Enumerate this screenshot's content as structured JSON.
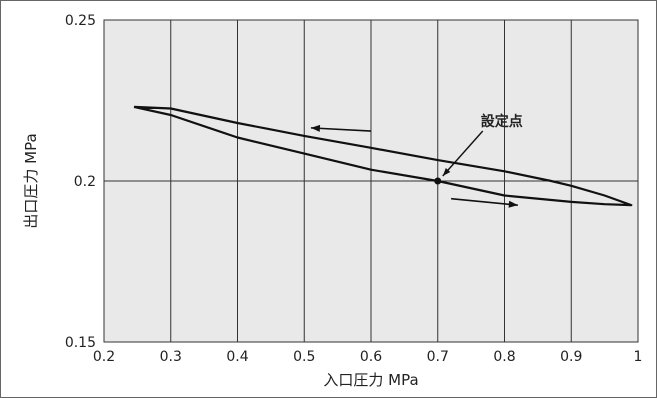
{
  "chart_data": {
    "type": "line",
    "xlabel": "入口圧力 MPa",
    "ylabel": "出口圧力 MPa",
    "xlim": [
      0.2,
      1.0
    ],
    "ylim": [
      0.15,
      0.25
    ],
    "x_ticks": [
      "0.2",
      "0.3",
      "0.4",
      "0.5",
      "0.6",
      "0.7",
      "0.8",
      "0.9",
      "1"
    ],
    "y_ticks": [
      "0.15",
      "0.2",
      "0.25"
    ],
    "grid": true,
    "background_color": "#e9e9e9",
    "series": [
      {
        "name": "",
        "points": [
          [
            0.245,
            0.223
          ],
          [
            0.3,
            0.2225
          ],
          [
            0.4,
            0.218
          ],
          [
            0.5,
            0.214
          ],
          [
            0.6,
            0.2103
          ],
          [
            0.7,
            0.2065
          ],
          [
            0.8,
            0.203
          ],
          [
            0.87,
            0.2
          ],
          [
            0.9,
            0.1985
          ],
          [
            0.95,
            0.1955
          ],
          [
            0.99,
            0.1925
          ],
          [
            0.95,
            0.1928
          ],
          [
            0.9,
            0.1935
          ],
          [
            0.8,
            0.1955
          ],
          [
            0.7,
            0.2
          ],
          [
            0.6,
            0.2035
          ],
          [
            0.5,
            0.2085
          ],
          [
            0.4,
            0.2135
          ],
          [
            0.3,
            0.2205
          ],
          [
            0.245,
            0.223
          ]
        ]
      }
    ],
    "annotations": [
      {
        "text": "設定点",
        "x": 0.7,
        "y": 0.2
      }
    ],
    "arrows": [
      {
        "direction": "left",
        "from": [
          0.6,
          0.2155
        ],
        "to": [
          0.51,
          0.2165
        ]
      },
      {
        "direction": "right",
        "from": [
          0.72,
          0.1945
        ],
        "to": [
          0.82,
          0.1925
        ]
      }
    ]
  }
}
